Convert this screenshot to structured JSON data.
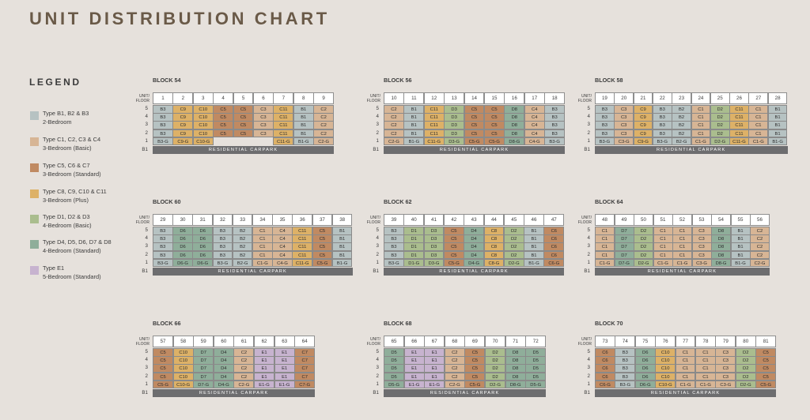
{
  "title": "UNIT DISTRIBUTION CHART",
  "legend": {
    "heading": "LEGEND",
    "items": [
      {
        "key": "B",
        "color": "#b6c2c2",
        "line1": "Type B1, B2 & B3",
        "line2": "2-Bedroom"
      },
      {
        "key": "CB",
        "color": "#d7b595",
        "line1": "Type C1, C2, C3 & C4",
        "line2": "3-Bedroom (Basic)"
      },
      {
        "key": "CS",
        "color": "#c08a62",
        "line1": "Type C5, C6 & C7",
        "line2": "3-Bedroom (Standard)"
      },
      {
        "key": "CP",
        "color": "#ddb167",
        "line1": "Type C8, C9, C10 & C11",
        "line2": "3-Bedroom (Plus)"
      },
      {
        "key": "DB",
        "color": "#aabd8e",
        "line1": "Type D1, D2 & D3",
        "line2": "4-Bedroom (Basic)"
      },
      {
        "key": "DS",
        "color": "#8fae9a",
        "line1": "Type D4, D5, D6, D7 & D8",
        "line2": "4-Bedroom (Standard)"
      },
      {
        "key": "E",
        "color": "#c7b3cf",
        "line1": "Type E1",
        "line2": "5-Bedroom (Standard)"
      }
    ]
  },
  "axis_label_line1": "UNIT/",
  "axis_label_line2": "FLOOR",
  "basement_label": "B1",
  "carpark_label": "RESIDENTIAL CARPARK",
  "floors": [
    "5",
    "4",
    "3",
    "2",
    "1"
  ],
  "blocks": [
    {
      "name": "BLOCK 54",
      "units": [
        "1",
        "2",
        "3",
        "4",
        "5",
        "6",
        "7",
        "8",
        "9"
      ],
      "rows": [
        [
          "B3",
          "C9",
          "C10",
          "C5",
          "C5",
          "C3",
          "C11",
          "B1",
          "C2"
        ],
        [
          "B3",
          "C9",
          "C10",
          "C5",
          "C5",
          "C3",
          "C11",
          "B1",
          "C2"
        ],
        [
          "B3",
          "C9",
          "C10",
          "C5",
          "C5",
          "C3",
          "C11",
          "B1",
          "C2"
        ],
        [
          "B3",
          "C9",
          "C10",
          "C5",
          "C5",
          "C3",
          "C11",
          "B1",
          "C2"
        ],
        [
          "B3-G",
          "C9-G",
          "C10-G",
          "",
          "",
          "",
          "C11-G",
          "B1-G",
          "C2-G"
        ]
      ]
    },
    {
      "name": "BLOCK 56",
      "units": [
        "10",
        "11",
        "12",
        "13",
        "14",
        "15",
        "16",
        "17",
        "18"
      ],
      "rows": [
        [
          "C2",
          "B1",
          "C11",
          "D3",
          "C5",
          "C5",
          "D8",
          "C4",
          "B3"
        ],
        [
          "C2",
          "B1",
          "C11",
          "D3",
          "C5",
          "C5",
          "D8",
          "C4",
          "B3"
        ],
        [
          "C2",
          "B1",
          "C11",
          "D3",
          "C5",
          "C5",
          "D8",
          "C4",
          "B3"
        ],
        [
          "C2",
          "B1",
          "C11",
          "D3",
          "C5",
          "C5",
          "D8",
          "C4",
          "B3"
        ],
        [
          "C2-G",
          "B1-G",
          "C11-G",
          "D3-G",
          "C5-G",
          "C5-G",
          "D8-G",
          "C4-G",
          "B3-G"
        ]
      ]
    },
    {
      "name": "BLOCK 58",
      "units": [
        "19",
        "20",
        "21",
        "22",
        "23",
        "24",
        "25",
        "26",
        "27",
        "28"
      ],
      "rows": [
        [
          "B3",
          "C3",
          "C9",
          "B3",
          "B2",
          "C1",
          "D2",
          "C11",
          "C1",
          "B1"
        ],
        [
          "B3",
          "C3",
          "C9",
          "B3",
          "B2",
          "C1",
          "D2",
          "C11",
          "C1",
          "B1"
        ],
        [
          "B3",
          "C3",
          "C9",
          "B3",
          "B2",
          "C1",
          "D2",
          "C11",
          "C1",
          "B1"
        ],
        [
          "B3",
          "C3",
          "C9",
          "B3",
          "B2",
          "C1",
          "D2",
          "C11",
          "C1",
          "B1"
        ],
        [
          "B3-G",
          "C3-G",
          "C9-G",
          "B3-G",
          "B2-G",
          "C1-G",
          "D2-G",
          "C11-G",
          "C1-G",
          "B1-G"
        ]
      ]
    },
    {
      "name": "BLOCK 60",
      "units": [
        "29",
        "30",
        "31",
        "32",
        "33",
        "34",
        "35",
        "36",
        "37",
        "38"
      ],
      "rows": [
        [
          "B3",
          "D6",
          "D6",
          "B3",
          "B2",
          "C1",
          "C4",
          "C11",
          "C5",
          "B1"
        ],
        [
          "B3",
          "D6",
          "D6",
          "B3",
          "B2",
          "C1",
          "C4",
          "C11",
          "C5",
          "B1"
        ],
        [
          "B3",
          "D6",
          "D6",
          "B3",
          "B2",
          "C1",
          "C4",
          "C11",
          "C5",
          "B1"
        ],
        [
          "B3",
          "D6",
          "D6",
          "B3",
          "B2",
          "C1",
          "C4",
          "C11",
          "C5",
          "B1"
        ],
        [
          "B3-G",
          "D6-G",
          "D6-G",
          "B3-G",
          "B2-G",
          "C1-G",
          "C4-G",
          "C11-G",
          "C5-G",
          "B1-G"
        ]
      ]
    },
    {
      "name": "BLOCK 62",
      "units": [
        "39",
        "40",
        "41",
        "42",
        "43",
        "44",
        "45",
        "46",
        "47"
      ],
      "rows": [
        [
          "B3",
          "D1",
          "D3",
          "C5",
          "D4",
          "C8",
          "D2",
          "B1",
          "C6"
        ],
        [
          "B3",
          "D1",
          "D3",
          "C5",
          "D4",
          "C8",
          "D2",
          "B1",
          "C6"
        ],
        [
          "B3",
          "D1",
          "D3",
          "C5",
          "D4",
          "C8",
          "D2",
          "B1",
          "C6"
        ],
        [
          "B3",
          "D1",
          "D3",
          "C5",
          "D4",
          "C8",
          "D2",
          "B1",
          "C6"
        ],
        [
          "B3-G",
          "D1-G",
          "D3-G",
          "C5-G",
          "D4-G",
          "C8-G",
          "D2-G",
          "B1-G",
          "C6-G"
        ]
      ]
    },
    {
      "name": "BLOCK 64",
      "units": [
        "48",
        "49",
        "50",
        "51",
        "52",
        "53",
        "54",
        "55",
        "56"
      ],
      "rows": [
        [
          "C1",
          "D7",
          "D2",
          "C1",
          "C1",
          "C3",
          "D8",
          "B1",
          "C2"
        ],
        [
          "C1",
          "D7",
          "D2",
          "C1",
          "C1",
          "C3",
          "D8",
          "B1",
          "C2"
        ],
        [
          "C1",
          "D7",
          "D2",
          "C1",
          "C1",
          "C3",
          "D8",
          "B1",
          "C2"
        ],
        [
          "C1",
          "D7",
          "D2",
          "C1",
          "C1",
          "C3",
          "D8",
          "B1",
          "C2"
        ],
        [
          "C1-G",
          "D7-G",
          "D2-G",
          "C1-G",
          "C1-G",
          "C3-G",
          "D8-G",
          "B1-G",
          "C2-G"
        ]
      ]
    },
    {
      "name": "BLOCK 66",
      "units": [
        "57",
        "58",
        "59",
        "60",
        "61",
        "62",
        "63",
        "64"
      ],
      "rows": [
        [
          "C5",
          "C10",
          "D7",
          "D4",
          "C2",
          "E1",
          "E1",
          "C7"
        ],
        [
          "C5",
          "C10",
          "D7",
          "D4",
          "C2",
          "E1",
          "E1",
          "C7"
        ],
        [
          "C5",
          "C10",
          "D7",
          "D4",
          "C2",
          "E1",
          "E1",
          "C7"
        ],
        [
          "C5",
          "C10",
          "D7",
          "D4",
          "C2",
          "E1",
          "E1",
          "C7"
        ],
        [
          "C5-G",
          "C10-G",
          "D7-G",
          "D4-G",
          "C2-G",
          "E1-G",
          "E1-G",
          "C7-G"
        ]
      ]
    },
    {
      "name": "BLOCK 68",
      "units": [
        "65",
        "66",
        "67",
        "68",
        "69",
        "70",
        "71",
        "72"
      ],
      "rows": [
        [
          "D5",
          "E1",
          "E1",
          "C2",
          "C5",
          "D2",
          "D8",
          "D5"
        ],
        [
          "D5",
          "E1",
          "E1",
          "C2",
          "C5",
          "D2",
          "D8",
          "D5"
        ],
        [
          "D5",
          "E1",
          "E1",
          "C2",
          "C5",
          "D2",
          "D8",
          "D5"
        ],
        [
          "D5",
          "E1",
          "E1",
          "C2",
          "C5",
          "D2",
          "D8",
          "D5"
        ],
        [
          "D5-G",
          "E1-G",
          "E1-G",
          "C2-G",
          "C5-G",
          "D2-G",
          "D8-G",
          "D5-G"
        ]
      ]
    },
    {
      "name": "BLOCK 70",
      "units": [
        "73",
        "74",
        "75",
        "76",
        "77",
        "78",
        "79",
        "80",
        "81"
      ],
      "rows": [
        [
          "C6",
          "B3",
          "D6",
          "C10",
          "C1",
          "C1",
          "C3",
          "D2",
          "C5"
        ],
        [
          "C6",
          "B3",
          "D6",
          "C10",
          "C1",
          "C1",
          "C3",
          "D2",
          "C5"
        ],
        [
          "C6",
          "B3",
          "D6",
          "C10",
          "C1",
          "C1",
          "C3",
          "D2",
          "C5"
        ],
        [
          "C6",
          "B3",
          "D6",
          "C10",
          "C1",
          "C1",
          "C3",
          "D2",
          "C5"
        ],
        [
          "C6-G",
          "B3-G",
          "D6-G",
          "C10-G",
          "C1-G",
          "C1-G",
          "C3-G",
          "D2-G",
          "C5-G"
        ]
      ]
    }
  ]
}
